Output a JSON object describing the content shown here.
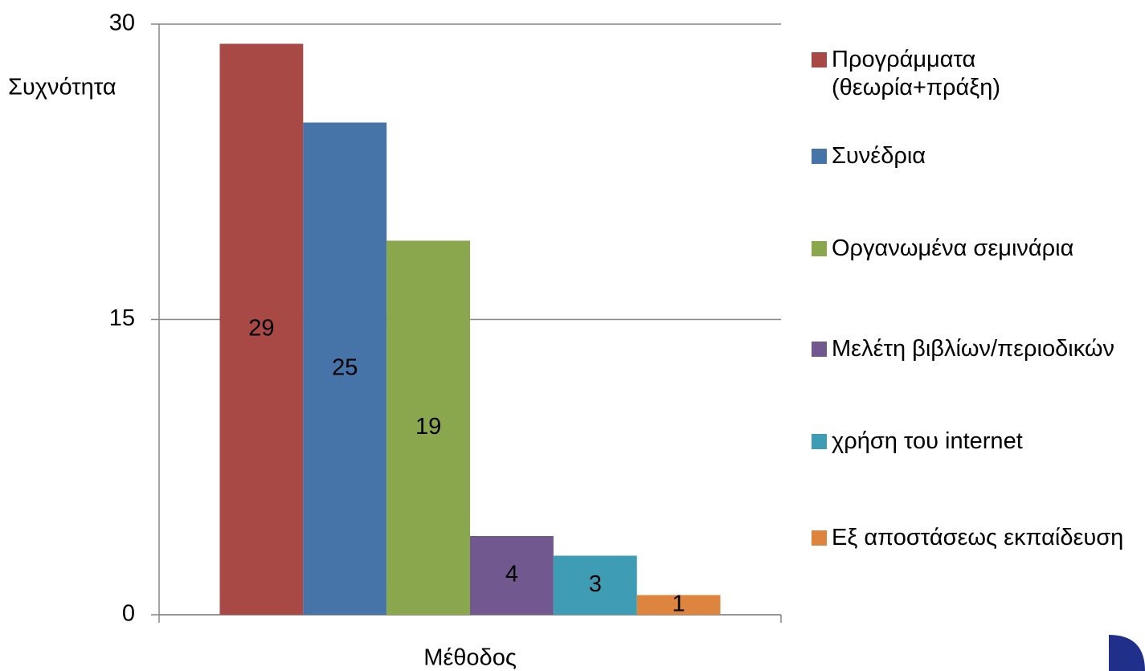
{
  "chart_data": {
    "type": "bar",
    "categories": [
      "Μέθοδος"
    ],
    "y_label": "Συχνότητα",
    "series": [
      {
        "name": "Προγράμματα (θεωρία+πράξη)",
        "color": "#a84945",
        "values": [
          29
        ]
      },
      {
        "name": "Συνέδρια",
        "color": "#4673a8",
        "values": [
          25
        ]
      },
      {
        "name": "Οργανωμένα σεμινάρια",
        "color": "#8aa74e",
        "values": [
          19
        ]
      },
      {
        "name": "Μελέτη βιβλίων/περιοδικών",
        "color": "#71598f",
        "values": [
          4
        ]
      },
      {
        "name": "χρήση του internet",
        "color": "#3f9cb5",
        "values": [
          3
        ]
      },
      {
        "name": "Εξ αποστάσεως εκπαίδευση",
        "color": "#dd853e",
        "values": [
          1
        ]
      }
    ],
    "ylim": [
      0,
      30
    ],
    "yticks": [
      0,
      15,
      30
    ],
    "grid": true
  }
}
